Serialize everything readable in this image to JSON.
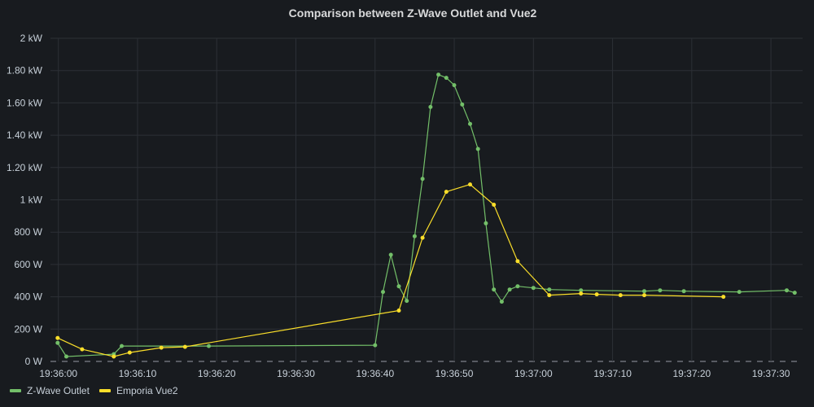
{
  "chart_data": {
    "type": "line",
    "title": "Comparison between Z-Wave Outlet and Vue2",
    "xlabel": "",
    "ylabel": "",
    "x_range": [
      "19:35:59",
      "19:37:34"
    ],
    "ylim": [
      0,
      2000
    ],
    "y_unit": "W",
    "y_ticks": [
      {
        "value": 0,
        "label": "0 W"
      },
      {
        "value": 200,
        "label": "200 W"
      },
      {
        "value": 400,
        "label": "400 W"
      },
      {
        "value": 600,
        "label": "600 W"
      },
      {
        "value": 800,
        "label": "800 W"
      },
      {
        "value": 1000,
        "label": "1 kW"
      },
      {
        "value": 1200,
        "label": "1.20 kW"
      },
      {
        "value": 1400,
        "label": "1.40 kW"
      },
      {
        "value": 1600,
        "label": "1.60 kW"
      },
      {
        "value": 1800,
        "label": "1.80 kW"
      },
      {
        "value": 2000,
        "label": "2 kW"
      }
    ],
    "x_ticks": [
      "19:36:00",
      "19:36:10",
      "19:36:20",
      "19:36:30",
      "19:36:40",
      "19:36:50",
      "19:37:00",
      "19:37:10",
      "19:37:20",
      "19:37:30"
    ],
    "grid": true,
    "legend": "bottom-left",
    "series": [
      {
        "name": "Z-Wave Outlet",
        "color": "#73bf69",
        "x": [
          "19:35:59.9",
          "19:36:01.0",
          "19:36:07.0",
          "19:36:08.0",
          "19:36:19.0",
          "19:36:40.0",
          "19:36:41.0",
          "19:36:42.0",
          "19:36:43.0",
          "19:36:44.0",
          "19:36:45.0",
          "19:36:46.0",
          "19:36:47.0",
          "19:36:48.0",
          "19:36:49.0",
          "19:36:50.0",
          "19:36:51.0",
          "19:36:52.0",
          "19:36:53.0",
          "19:36:54.0",
          "19:36:55.0",
          "19:36:56.0",
          "19:36:57.0",
          "19:36:58.0",
          "19:37:00.0",
          "19:37:02.0",
          "19:37:06.0",
          "19:37:14.0",
          "19:37:16.0",
          "19:37:19.0",
          "19:37:26.0",
          "19:37:32.0",
          "19:37:33.0"
        ],
        "y": [
          115,
          30,
          45,
          95,
          95,
          100,
          430,
          660,
          465,
          375,
          775,
          1130,
          1575,
          1775,
          1755,
          1710,
          1590,
          1470,
          1315,
          855,
          445,
          370,
          445,
          465,
          455,
          445,
          440,
          435,
          440,
          435,
          430,
          440,
          425
        ]
      },
      {
        "name": "Emporia Vue2",
        "color": "#fade2a",
        "x": [
          "19:35:59.9",
          "19:36:03.0",
          "19:36:07.0",
          "19:36:09.0",
          "19:36:13.0",
          "19:36:16.0",
          "19:36:43.0",
          "19:36:46.0",
          "19:36:49.0",
          "19:36:52.0",
          "19:36:55.0",
          "19:36:58.0",
          "19:37:02.0",
          "19:37:06.0",
          "19:37:08.0",
          "19:37:11.0",
          "19:37:14.0",
          "19:37:24.0"
        ],
        "y": [
          145,
          75,
          30,
          55,
          85,
          90,
          315,
          765,
          1050,
          1095,
          970,
          620,
          410,
          420,
          415,
          410,
          410,
          400
        ]
      }
    ]
  }
}
